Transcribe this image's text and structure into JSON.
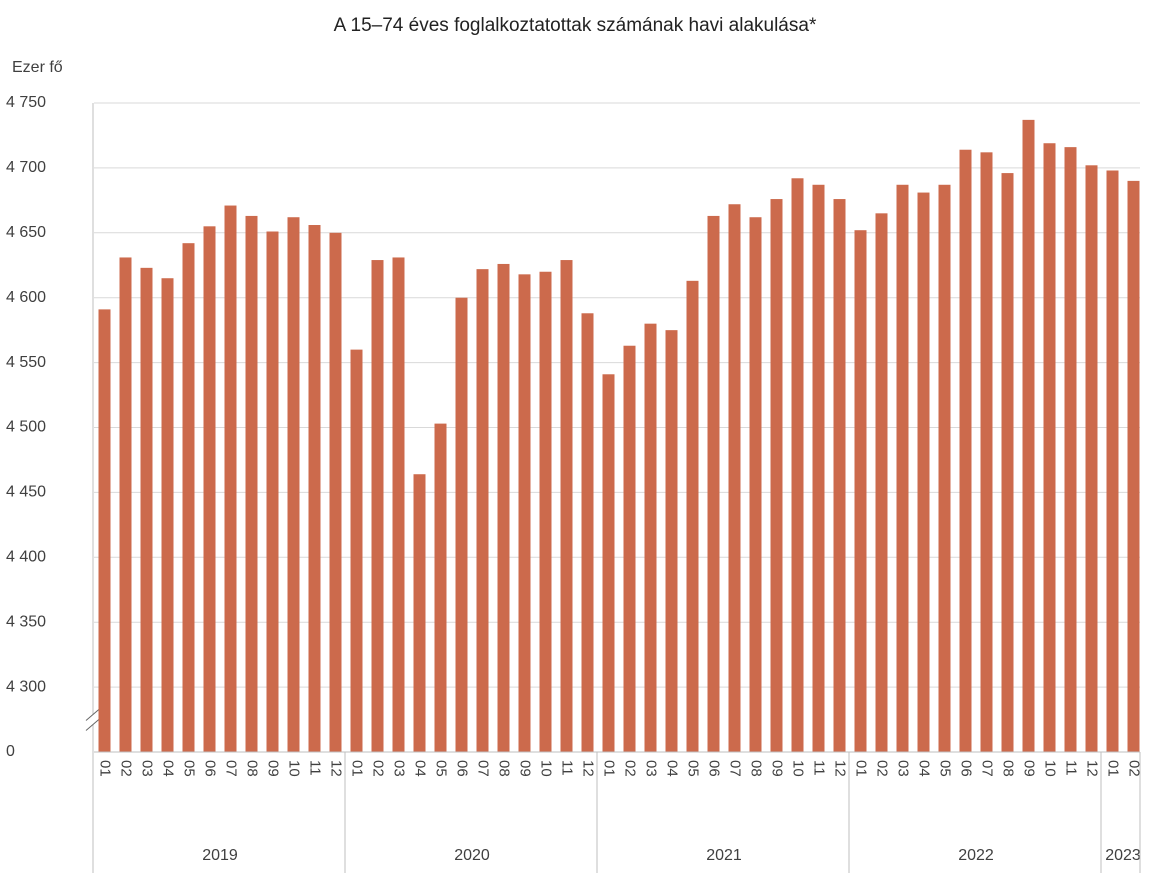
{
  "chart_data": {
    "type": "bar",
    "title": "A 15–74 éves foglalkoztatottak számának havi alakulása*",
    "y_label": "Ezer fő",
    "color": "#cc6a4c",
    "grid": true,
    "broken_axis": true,
    "groups": [
      {
        "label": "2019",
        "categories": [
          "01",
          "02",
          "03",
          "04",
          "05",
          "06",
          "07",
          "08",
          "09",
          "10",
          "11",
          "12"
        ]
      },
      {
        "label": "2020",
        "categories": [
          "01",
          "02",
          "03",
          "04",
          "05",
          "06",
          "07",
          "08",
          "09",
          "10",
          "11",
          "12"
        ]
      },
      {
        "label": "2021",
        "categories": [
          "01",
          "02",
          "03",
          "04",
          "05",
          "06",
          "07",
          "08",
          "09",
          "10",
          "11",
          "12"
        ]
      },
      {
        "label": "2022",
        "categories": [
          "01",
          "02",
          "03",
          "04",
          "05",
          "06",
          "07",
          "08",
          "09",
          "10",
          "11",
          "12"
        ]
      },
      {
        "label": "2023",
        "categories": [
          "01",
          "02"
        ]
      }
    ],
    "values": [
      4591,
      4631,
      4623,
      4615,
      4642,
      4655,
      4671,
      4663,
      4651,
      4662,
      4656,
      4650,
      4560,
      4629,
      4631,
      4464,
      4503,
      4600,
      4622,
      4626,
      4618,
      4620,
      4629,
      4588,
      4541,
      4563,
      4580,
      4575,
      4613,
      4663,
      4672,
      4662,
      4676,
      4692,
      4687,
      4676,
      4652,
      4665,
      4687,
      4681,
      4687,
      4714,
      4712,
      4696,
      4737,
      4719,
      4716,
      4702,
      4698,
      4690
    ],
    "ylim": [
      0,
      4750
    ],
    "yticks": [
      0,
      {
        "value": 4300,
        "label": "4 300"
      },
      {
        "value": 4350,
        "label": "4 350"
      },
      {
        "value": 4400,
        "label": "4 400"
      },
      {
        "value": 4450,
        "label": "4 450"
      },
      {
        "value": 4500,
        "label": "4 500"
      },
      {
        "value": 4550,
        "label": "4 550"
      },
      {
        "value": 4600,
        "label": "4 600"
      },
      {
        "value": 4650,
        "label": "4 650"
      },
      {
        "value": 4700,
        "label": "4 700"
      },
      {
        "value": 4750,
        "label": "4 750"
      }
    ]
  }
}
